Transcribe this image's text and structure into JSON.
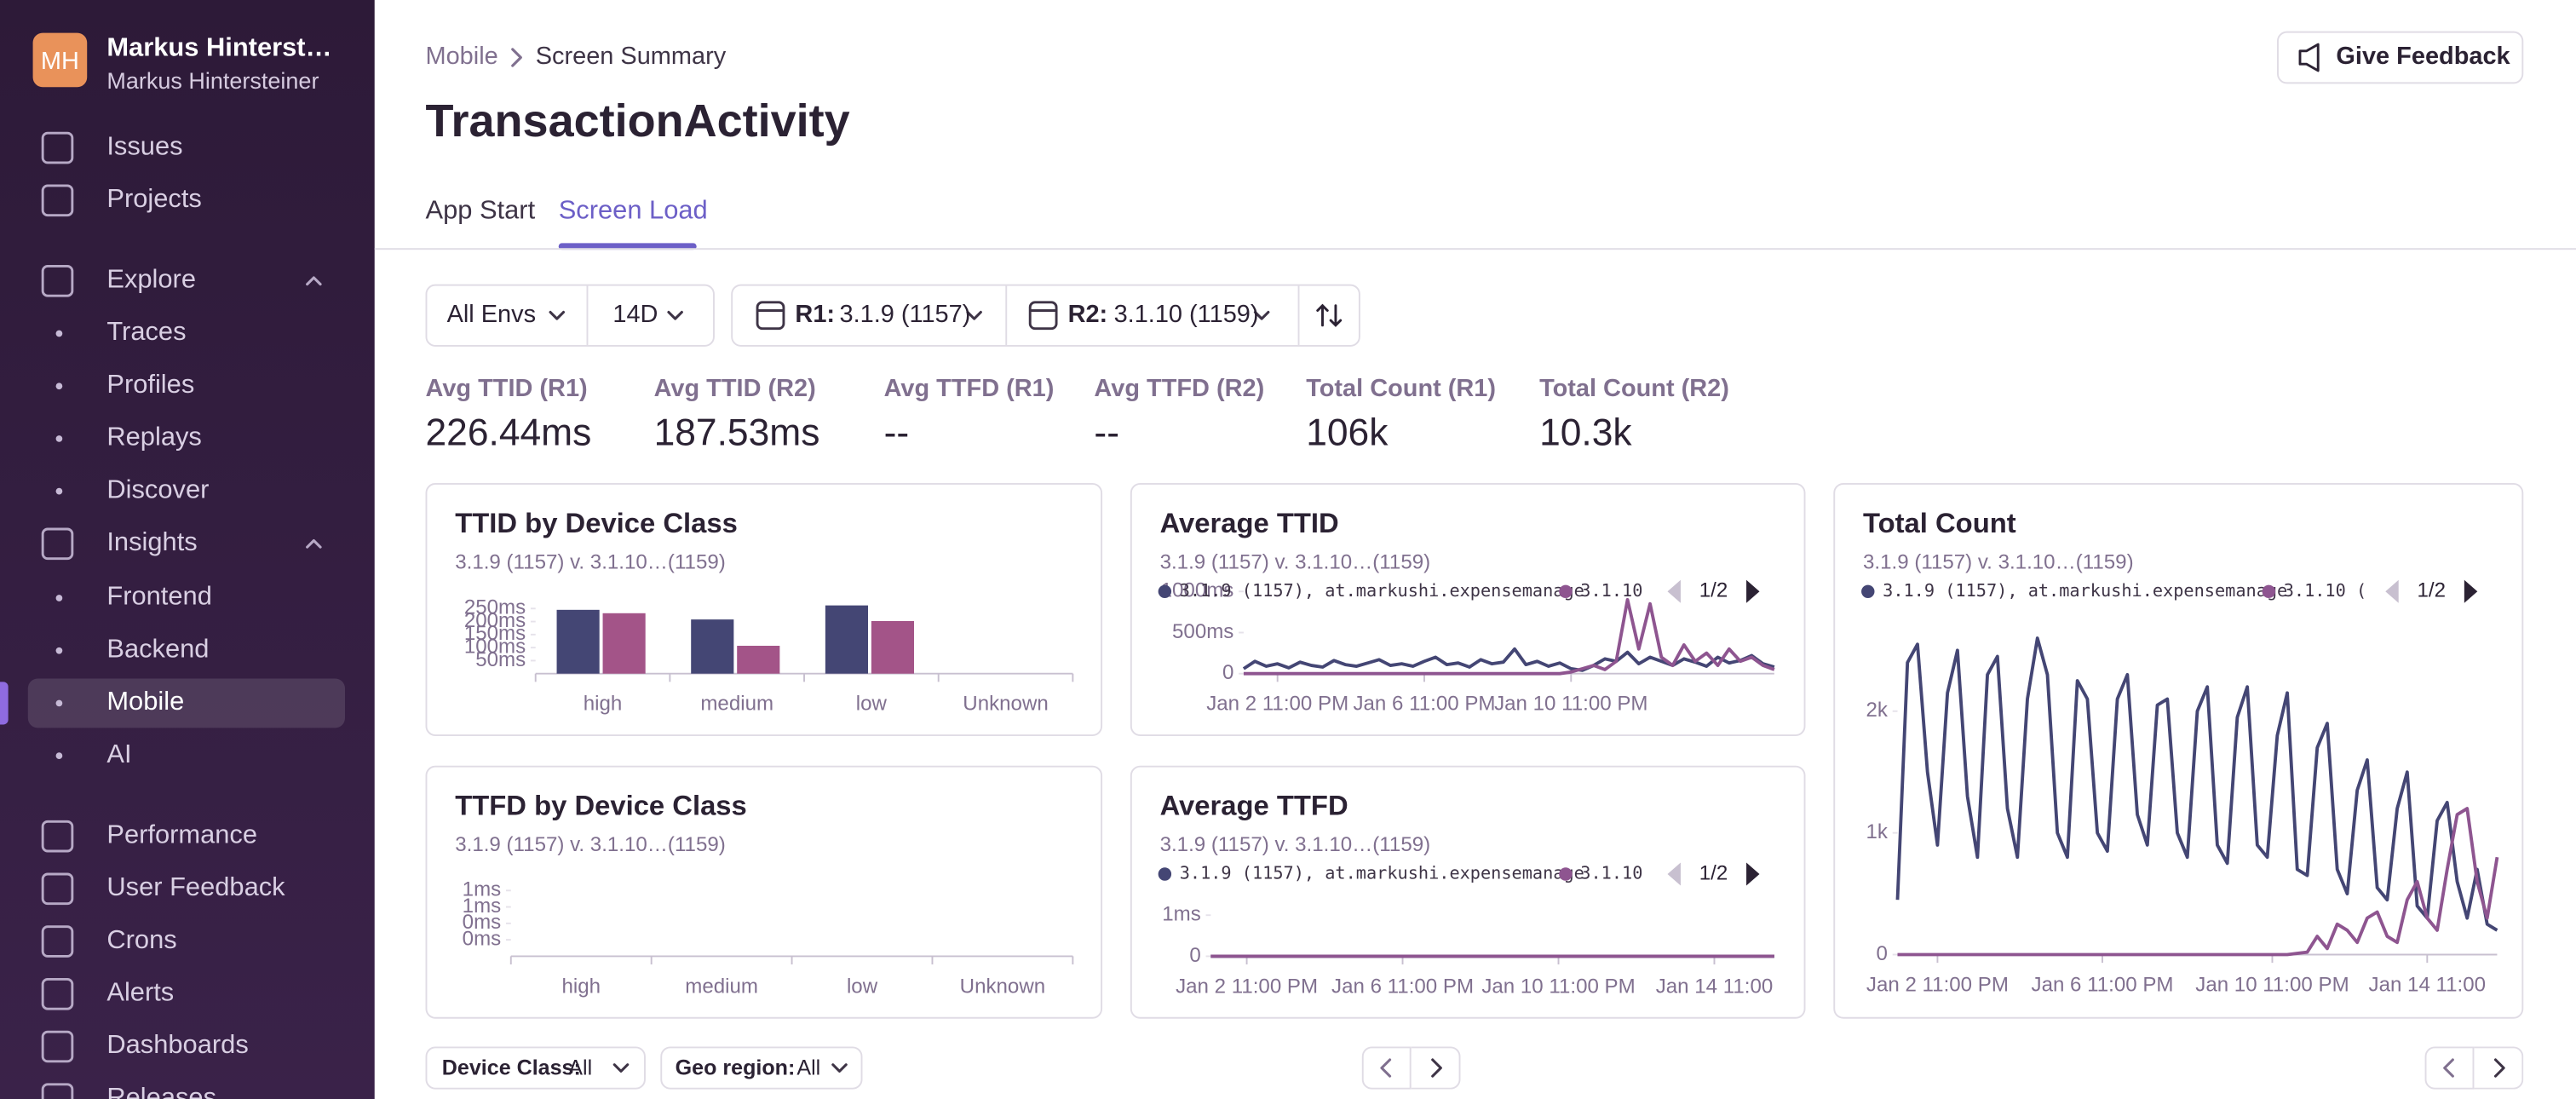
{
  "sidebar": {
    "initials": "MH",
    "user_name": "Markus Hinterst…",
    "user_sub": "Markus Hintersteiner",
    "nav": [
      {
        "label": "Issues"
      },
      {
        "label": "Projects"
      },
      {
        "label": "Explore",
        "expanded": true
      },
      {
        "label": "Traces",
        "sub": true
      },
      {
        "label": "Profiles",
        "sub": true
      },
      {
        "label": "Replays",
        "sub": true
      },
      {
        "label": "Discover",
        "sub": true
      },
      {
        "label": "Insights",
        "expanded": true
      },
      {
        "label": "Frontend",
        "sub": true
      },
      {
        "label": "Backend",
        "sub": true
      },
      {
        "label": "Mobile",
        "sub": true,
        "active": true
      },
      {
        "label": "AI",
        "sub": true
      },
      {
        "label": "Performance"
      },
      {
        "label": "User Feedback"
      },
      {
        "label": "Crons"
      },
      {
        "label": "Alerts"
      },
      {
        "label": "Dashboards"
      },
      {
        "label": "Releases"
      }
    ]
  },
  "header": {
    "breadcrumb": [
      "Mobile",
      "Screen Summary"
    ],
    "title": "TransactionActivity",
    "feedback": "Give Feedback"
  },
  "tabs": {
    "items": [
      "App Start",
      "Screen Load"
    ],
    "active": 1
  },
  "filters": {
    "env": "All Envs",
    "period": "14D",
    "r1_label": "R1:",
    "r1": "3.1.9 (1157)",
    "r2_label": "R2:",
    "r2": "3.1.10 (1159)"
  },
  "metrics": [
    {
      "label": "Avg TTID (R1)",
      "value": "226.44ms"
    },
    {
      "label": "Avg TTID (R2)",
      "value": "187.53ms"
    },
    {
      "label": "Avg TTFD (R1)",
      "value": "--"
    },
    {
      "label": "Avg TTFD (R2)",
      "value": "--"
    },
    {
      "label": "Total Count (R1)",
      "value": "106k"
    },
    {
      "label": "Total Count (R2)",
      "value": "10.3k"
    }
  ],
  "charts": [
    {
      "type": "bar",
      "title": "TTID by Device Class",
      "subtitle": "3.1.9 (1157) v. 3.1.10…(1159)",
      "categories": [
        "high",
        "medium",
        "low",
        "Unknown"
      ],
      "series": [
        {
          "color": "#444674",
          "values": [
            245,
            208,
            262,
            null
          ]
        },
        {
          "color": "#a35488",
          "values": [
            232,
            107,
            202,
            null
          ]
        }
      ],
      "ylim": [
        0,
        265
      ],
      "yticks": [
        {
          "value": 50,
          "label": "50ms"
        },
        {
          "value": 100,
          "label": "100ms"
        },
        {
          "value": 150,
          "label": "150ms"
        },
        {
          "value": 200,
          "label": "200ms"
        },
        {
          "value": 250,
          "label": "250ms"
        }
      ]
    },
    {
      "type": "line",
      "title": "Average TTID",
      "subtitle": "3.1.9 (1157) v. 3.1.10…(1159)",
      "pager": "1/2",
      "series": [
        {
          "name": "3.1.9 (1157), at.markushi.expensemanage",
          "color": "#444674",
          "values": [
            60,
            150,
            90,
            120,
            70,
            140,
            100,
            80,
            160,
            110,
            90,
            130,
            170,
            100,
            120,
            90,
            150,
            200,
            110,
            130,
            80,
            170,
            120,
            140,
            300,
            110,
            150,
            90,
            130,
            60,
            40,
            100,
            180,
            150,
            260,
            120,
            200,
            150,
            100,
            180,
            140,
            90,
            200,
            130,
            160,
            220,
            120,
            80
          ]
        },
        {
          "name": "3.1.10",
          "color": "#8e5590",
          "values": [
            0,
            0,
            0,
            0,
            0,
            0,
            0,
            0,
            0,
            0,
            0,
            0,
            0,
            0,
            0,
            0,
            0,
            0,
            0,
            0,
            0,
            0,
            0,
            0,
            0,
            0,
            0,
            0,
            0,
            20,
            60,
            100,
            50,
            150,
            900,
            300,
            850,
            200,
            100,
            350,
            150,
            250,
            100,
            300,
            150,
            200,
            100,
            50
          ]
        }
      ],
      "xlim": [
        0,
        47
      ],
      "xticks": [
        {
          "value": 3,
          "label": "Jan 2 11:00 PM"
        },
        {
          "value": 16,
          "label": "Jan 6 11:00 PM"
        },
        {
          "value": 29,
          "label": "Jan 10 11:00 PM"
        }
      ],
      "ylim": [
        0,
        1000
      ],
      "yticks": [
        0,
        {
          "value": 500,
          "label": "500ms"
        },
        {
          "value": 1000,
          "label": "1000ms"
        }
      ]
    },
    {
      "type": "line",
      "title": "Total Count",
      "subtitle": "3.1.9 (1157) v. 3.1.10…(1159)",
      "pager": "1/2",
      "series": [
        {
          "name": "3.1.9 (1157), at.markushi.expensemanage",
          "color": "#444674",
          "values": [
            450,
            2400,
            2550,
            1500,
            900,
            2150,
            2500,
            1300,
            800,
            2300,
            2450,
            1200,
            800,
            2100,
            2600,
            2300,
            1000,
            800,
            2250,
            2100,
            1000,
            850,
            2100,
            2300,
            1150,
            900,
            2050,
            2100,
            1000,
            800,
            2000,
            2200,
            900,
            750,
            1950,
            2200,
            900,
            800,
            1800,
            2150,
            700,
            650,
            1700,
            1900,
            700,
            500,
            1350,
            1600,
            550,
            450,
            1200,
            1500,
            400,
            300,
            1100,
            1250,
            600,
            300,
            700,
            250,
            200
          ]
        },
        {
          "name": "3.1.10 (",
          "color": "#8e5590",
          "values": [
            0,
            0,
            0,
            0,
            0,
            0,
            0,
            0,
            0,
            0,
            0,
            0,
            0,
            0,
            0,
            0,
            0,
            0,
            0,
            0,
            0,
            0,
            0,
            0,
            0,
            0,
            0,
            0,
            0,
            0,
            0,
            0,
            0,
            0,
            0,
            0,
            0,
            0,
            0,
            0,
            10,
            20,
            150,
            50,
            250,
            200,
            100,
            300,
            350,
            150,
            100,
            450,
            600,
            300,
            200,
            700,
            1150,
            1200,
            600,
            300,
            800
          ]
        }
      ],
      "xlim": [
        0,
        60
      ],
      "xticks": [
        {
          "value": 4,
          "label": "Jan 2 11:00 PM"
        },
        {
          "value": 20.5,
          "label": "Jan 6 11:00 PM"
        },
        {
          "value": 37.5,
          "label": "Jan 10 11:00 PM"
        },
        {
          "value": 53,
          "label": "Jan 14 11:00"
        }
      ],
      "ylim": [
        0,
        2700
      ],
      "yticks": [
        0,
        {
          "value": 1000,
          "label": "1k"
        },
        {
          "value": 2000,
          "label": "2k"
        }
      ]
    },
    {
      "type": "bar",
      "title": "TTFD by Device Class",
      "subtitle": "3.1.9 (1157) v. 3.1.10…(1159)",
      "categories": [
        "high",
        "medium",
        "low",
        "Unknown"
      ],
      "series": [
        {
          "color": "#444674",
          "values": [
            null,
            null,
            null,
            null
          ]
        },
        {
          "color": "#a35488",
          "values": [
            null,
            null,
            null,
            null
          ]
        }
      ],
      "ylim": [
        0,
        0.84
      ],
      "yticks": [
        {
          "value": 0.2,
          "label": "0ms"
        },
        {
          "value": 0.4,
          "label": "0ms"
        },
        {
          "value": 0.6,
          "label": "1ms"
        },
        {
          "value": 0.8,
          "label": "1ms"
        }
      ]
    },
    {
      "type": "line",
      "title": "Average TTFD",
      "subtitle": "3.1.9 (1157) v. 3.1.10…(1159)",
      "pager": "1/2",
      "series": [
        {
          "name": "3.1.9 (1157), at.markushi.expensemanage",
          "color": "#444674",
          "values": [
            0,
            0,
            0,
            0,
            0,
            0,
            0,
            0,
            0,
            0,
            0,
            0,
            0,
            0,
            0,
            0,
            0,
            0,
            0,
            0,
            0,
            0,
            0,
            0,
            0,
            0,
            0,
            0,
            0,
            0,
            0,
            0,
            0,
            0,
            0,
            0,
            0,
            0,
            0,
            0,
            0,
            0,
            0,
            0,
            0,
            0,
            0,
            0
          ]
        },
        {
          "name": "3.1.10",
          "color": "#8e5590",
          "values": [
            0,
            0,
            0,
            0,
            0,
            0,
            0,
            0,
            0,
            0,
            0,
            0,
            0,
            0,
            0,
            0,
            0,
            0,
            0,
            0,
            0,
            0,
            0,
            0,
            0,
            0,
            0,
            0,
            0,
            0,
            0,
            0,
            0,
            0,
            0,
            0,
            0,
            0,
            0,
            0,
            0,
            0,
            0,
            0,
            0,
            0,
            0,
            0
          ]
        }
      ],
      "xlim": [
        0,
        47
      ],
      "xticks": [
        {
          "value": 3,
          "label": "Jan 2 11:00 PM"
        },
        {
          "value": 16,
          "label": "Jan 6 11:00 PM"
        },
        {
          "value": 29,
          "label": "Jan 10 11:00 PM"
        },
        {
          "value": 42,
          "label": "Jan 14 11:00"
        }
      ],
      "ylim": [
        0,
        2
      ],
      "yticks": [
        0,
        {
          "value": 1,
          "label": "1ms"
        }
      ]
    }
  ],
  "footer": {
    "device_label": "Device Class:",
    "device_value": "All",
    "geo_label": "Geo region:",
    "geo_value": "All"
  }
}
